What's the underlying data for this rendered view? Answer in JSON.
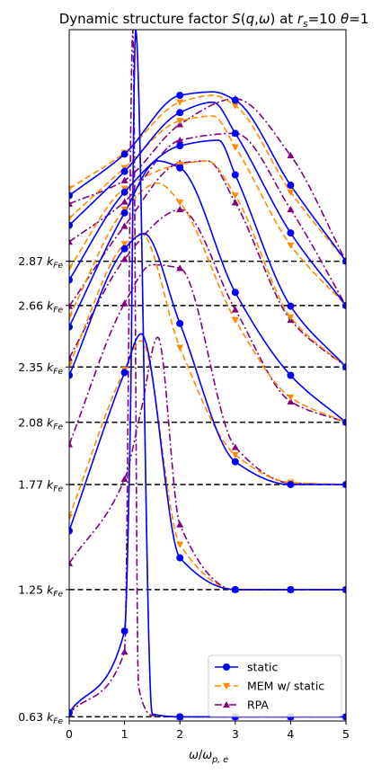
{
  "chart_data": {
    "type": "line",
    "title": "Dynamic structure factor S(q,ω) at r_s=10 θ=1",
    "title_parts": {
      "prefix": "Dynamic structure factor ",
      "S": "S",
      "q": "q",
      "omega": "ω",
      "mid": " at ",
      "r": "r",
      "s": "s",
      "rs_val": "=10 ",
      "theta": "θ",
      "theta_val": "=1"
    },
    "xlabel": {
      "omega": "ω",
      "slash": "/",
      "omega2": "ω",
      "sub": "p, e"
    },
    "xlim": [
      0,
      5
    ],
    "ylim": [
      0,
      1
    ],
    "xticks": [
      "0",
      "1",
      "2",
      "3",
      "4",
      "5"
    ],
    "y_unit": {
      "k": "k",
      "sub": "Fe"
    },
    "baselines": [
      {
        "label": "0.63",
        "y": 0.006
      },
      {
        "label": "1.25",
        "y": 0.19
      },
      {
        "label": "1.77",
        "y": 0.342
      },
      {
        "label": "2.08",
        "y": 0.432
      },
      {
        "label": "2.35",
        "y": 0.512
      },
      {
        "label": "2.66",
        "y": 0.601
      },
      {
        "label": "2.87",
        "y": 0.665
      }
    ],
    "legend": {
      "position": "lower right",
      "entries": [
        "static",
        "MEM w/ static",
        "RPA"
      ]
    },
    "colors": {
      "static": "#0000ff",
      "mem": "#ff8c00",
      "rpa": "#800080"
    },
    "series": [
      {
        "method": "static",
        "x": [
          0,
          1,
          1.1,
          1.2,
          1.5,
          2,
          3,
          4,
          5
        ],
        "values": [
          0.012,
          0.13,
          0.41,
          1.0,
          0.01,
          0.006,
          0.006,
          0.006,
          0.006
        ]
      },
      {
        "method": "static",
        "x": [
          0,
          1,
          1.3,
          2,
          3,
          4,
          5
        ],
        "values": [
          0.275,
          0.504,
          0.56,
          0.236,
          0.19,
          0.19,
          0.19
        ]
      },
      {
        "method": "static",
        "x": [
          0,
          1,
          1.35,
          2,
          3,
          4,
          5
        ],
        "values": [
          0.5,
          0.683,
          0.705,
          0.575,
          0.375,
          0.342,
          0.342
        ]
      },
      {
        "method": "static",
        "x": [
          0,
          1,
          1.6,
          2,
          3,
          4,
          5
        ],
        "values": [
          0.57,
          0.735,
          0.81,
          0.8,
          0.62,
          0.5,
          0.432
        ]
      },
      {
        "method": "static",
        "x": [
          0,
          1,
          2,
          2.7,
          3,
          4,
          5
        ],
        "values": [
          0.638,
          0.765,
          0.832,
          0.84,
          0.79,
          0.6,
          0.512
        ]
      },
      {
        "method": "static",
        "x": [
          0,
          1,
          2,
          2.6,
          3,
          4,
          5
        ],
        "values": [
          0.717,
          0.795,
          0.88,
          0.895,
          0.85,
          0.706,
          0.601
        ]
      },
      {
        "method": "static",
        "x": [
          0,
          1,
          2,
          2.6,
          3,
          4,
          5
        ],
        "values": [
          0.76,
          0.82,
          0.905,
          0.91,
          0.898,
          0.775,
          0.665
        ]
      },
      {
        "method": "MEM w/ static",
        "x": [
          0,
          1,
          1.1,
          1.2,
          1.5,
          2,
          3,
          4,
          5
        ],
        "values": [
          0.012,
          0.13,
          0.41,
          1.0,
          0.01,
          0.006,
          0.006,
          0.006,
          0.006
        ]
      },
      {
        "method": "MEM w/ static",
        "x": [
          0,
          1,
          1.3,
          2,
          3,
          4,
          5
        ],
        "values": [
          0.295,
          0.508,
          0.55,
          0.255,
          0.19,
          0.19,
          0.19
        ]
      },
      {
        "method": "MEM w/ static",
        "x": [
          0,
          1,
          1.3,
          2,
          3,
          4,
          5
        ],
        "values": [
          0.515,
          0.69,
          0.705,
          0.54,
          0.385,
          0.345,
          0.342
        ]
      },
      {
        "method": "MEM w/ static",
        "x": [
          0,
          1,
          1.6,
          2,
          3,
          4,
          5
        ],
        "values": [
          0.585,
          0.74,
          0.778,
          0.75,
          0.58,
          0.468,
          0.432
        ]
      },
      {
        "method": "MEM w/ static",
        "x": [
          0,
          1,
          2,
          2.5,
          3,
          4,
          5
        ],
        "values": [
          0.655,
          0.77,
          0.805,
          0.81,
          0.76,
          0.584,
          0.512
        ]
      },
      {
        "method": "MEM w/ static",
        "x": [
          0,
          1,
          2,
          2.6,
          3,
          4,
          5
        ],
        "values": [
          0.727,
          0.8,
          0.868,
          0.875,
          0.83,
          0.688,
          0.601
        ]
      },
      {
        "method": "MEM w/ static",
        "x": [
          0,
          1,
          2,
          2.6,
          3,
          4,
          5
        ],
        "values": [
          0.77,
          0.822,
          0.895,
          0.905,
          0.89,
          0.765,
          0.665
        ]
      },
      {
        "method": "RPA",
        "x": [
          0,
          1,
          1.15,
          1.25,
          1.5,
          2,
          3,
          4,
          5
        ],
        "values": [
          0.011,
          0.1,
          1.0,
          0.05,
          0.008,
          0.006,
          0.006,
          0.006,
          0.006
        ]
      },
      {
        "method": "RPA",
        "x": [
          0,
          1,
          1.3,
          1.6,
          2,
          3,
          4,
          5
        ],
        "values": [
          0.228,
          0.35,
          0.45,
          0.555,
          0.284,
          0.19,
          0.19,
          0.19
        ]
      },
      {
        "method": "RPA",
        "x": [
          0,
          1,
          1.5,
          2,
          3,
          4,
          5
        ],
        "values": [
          0.4,
          0.604,
          0.66,
          0.655,
          0.396,
          0.344,
          0.342
        ]
      },
      {
        "method": "RPA",
        "x": [
          0,
          1,
          1.9,
          2,
          3,
          4,
          5
        ],
        "values": [
          0.525,
          0.668,
          0.738,
          0.74,
          0.595,
          0.462,
          0.432
        ]
      },
      {
        "method": "RPA",
        "x": [
          0,
          1,
          2,
          2.5,
          3,
          4,
          5
        ],
        "values": [
          0.6,
          0.716,
          0.807,
          0.81,
          0.75,
          0.58,
          0.512
        ]
      },
      {
        "method": "RPA",
        "x": [
          0,
          1,
          2,
          3,
          4,
          5
        ],
        "values": [
          0.693,
          0.751,
          0.84,
          0.85,
          0.74,
          0.601
        ]
      },
      {
        "method": "RPA",
        "x": [
          0,
          1,
          2,
          3,
          4,
          5
        ],
        "values": [
          0.748,
          0.782,
          0.863,
          0.9,
          0.818,
          0.665
        ]
      }
    ]
  }
}
